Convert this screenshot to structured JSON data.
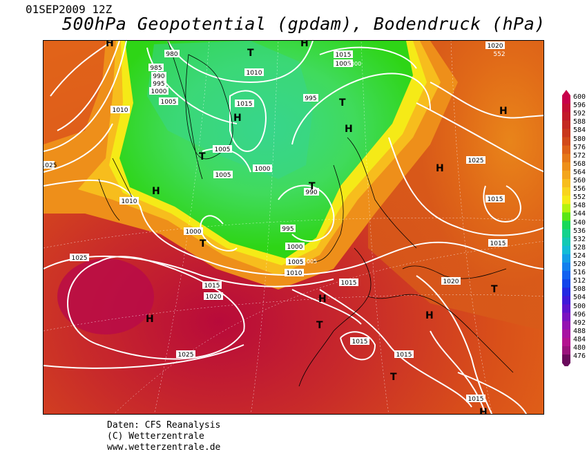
{
  "header": {
    "date": "01SEP2009 12Z",
    "title": "500hPa Geopotential (gpdam), Bodendruck (hPa)"
  },
  "footer": {
    "source": "Daten: CFS Reanalysis",
    "copyright": "(C) Wetterzentrale",
    "url": "www.wetterzentrale.de"
  },
  "legend": {
    "levels": [
      "600",
      "596",
      "592",
      "588",
      "584",
      "580",
      "576",
      "572",
      "568",
      "564",
      "560",
      "556",
      "552",
      "548",
      "544",
      "540",
      "536",
      "532",
      "528",
      "524",
      "520",
      "516",
      "512",
      "508",
      "504",
      "500",
      "496",
      "492",
      "488",
      "484",
      "480",
      "476"
    ],
    "colors": [
      "#c8004a",
      "#c40d35",
      "#c21a2a",
      "#c42a22",
      "#c9381d",
      "#d24a1a",
      "#de6118",
      "#e67818",
      "#ee8f1a",
      "#f3a51c",
      "#f7bd1d",
      "#f8d41e",
      "#f5ea17",
      "#b4f20e",
      "#5ae616",
      "#18d85a",
      "#14d28d",
      "#12c9b4",
      "#12bcd6",
      "#129ee6",
      "#1280ee",
      "#1262f0",
      "#1244ea",
      "#2428e2",
      "#4018d8",
      "#5e12cc",
      "#7a12c0",
      "#9412b2",
      "#a812a2",
      "#b41290",
      "#9a127c",
      "#6a0a5c"
    ]
  },
  "map": {
    "pressure_labels": [
      "980",
      "985",
      "990",
      "995",
      "1000",
      "1005",
      "1010",
      "1015",
      "1005",
      "1000",
      "995",
      "1010",
      "1015",
      "1005",
      "1005",
      "1000",
      "990",
      "995",
      "1000",
      "1005",
      "1010",
      "1015",
      "1020",
      "1025",
      "1025",
      "1015",
      "1025",
      "1015",
      "1015",
      "1020",
      "1015",
      "1015",
      "1015",
      "1020",
      "552",
      "1025",
      "1010",
      "1005",
      "1000"
    ],
    "pressure_centers": [
      "H",
      "T",
      "T",
      "H",
      "T",
      "H",
      "H",
      "T",
      "T",
      "H",
      "H",
      "T",
      "H",
      "H",
      "T",
      "H",
      "T",
      "H",
      "H"
    ]
  }
}
